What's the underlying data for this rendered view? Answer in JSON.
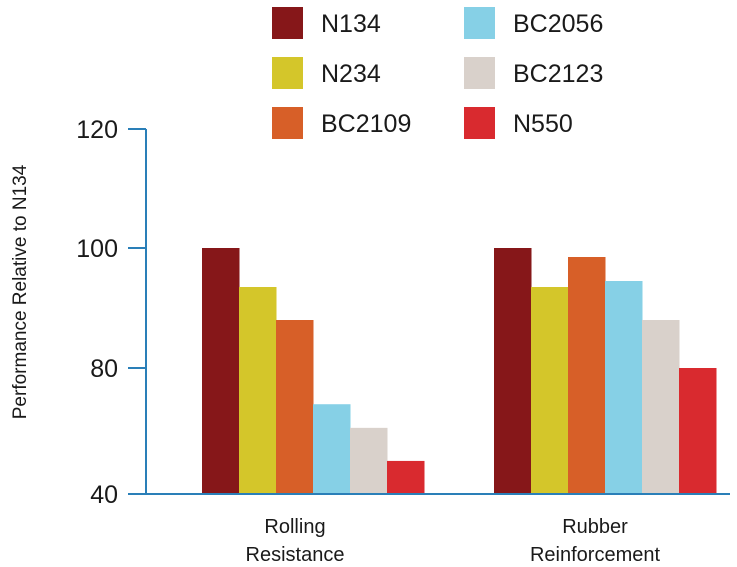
{
  "chart_data": {
    "type": "bar",
    "title": "",
    "xlabel": "",
    "ylabel": "Performance Relative to N134",
    "ylim": [
      40,
      120
    ],
    "yticks": [
      40,
      80,
      100,
      120
    ],
    "categories": [
      {
        "lines": [
          "Rolling",
          "Resistance"
        ]
      },
      {
        "lines": [
          "Rubber",
          "Reinforcement"
        ]
      }
    ],
    "series": [
      {
        "name": "N134",
        "color": "#861719",
        "values": [
          100,
          100
        ]
      },
      {
        "name": "N234",
        "color": "#d4c62a",
        "values": [
          93.5,
          93.5
        ]
      },
      {
        "name": "BC2109",
        "color": "#d75f28",
        "values": [
          88,
          98.5
        ]
      },
      {
        "name": "BC2056",
        "color": "#86d0e6",
        "values": [
          68.5,
          94.5
        ]
      },
      {
        "name": "BC2123",
        "color": "#d9d1cb",
        "values": [
          61,
          88
        ]
      },
      {
        "name": "N550",
        "color": "#d92a2f",
        "values": [
          50.5,
          80
        ]
      }
    ],
    "grid": false,
    "legend_position": "top"
  }
}
